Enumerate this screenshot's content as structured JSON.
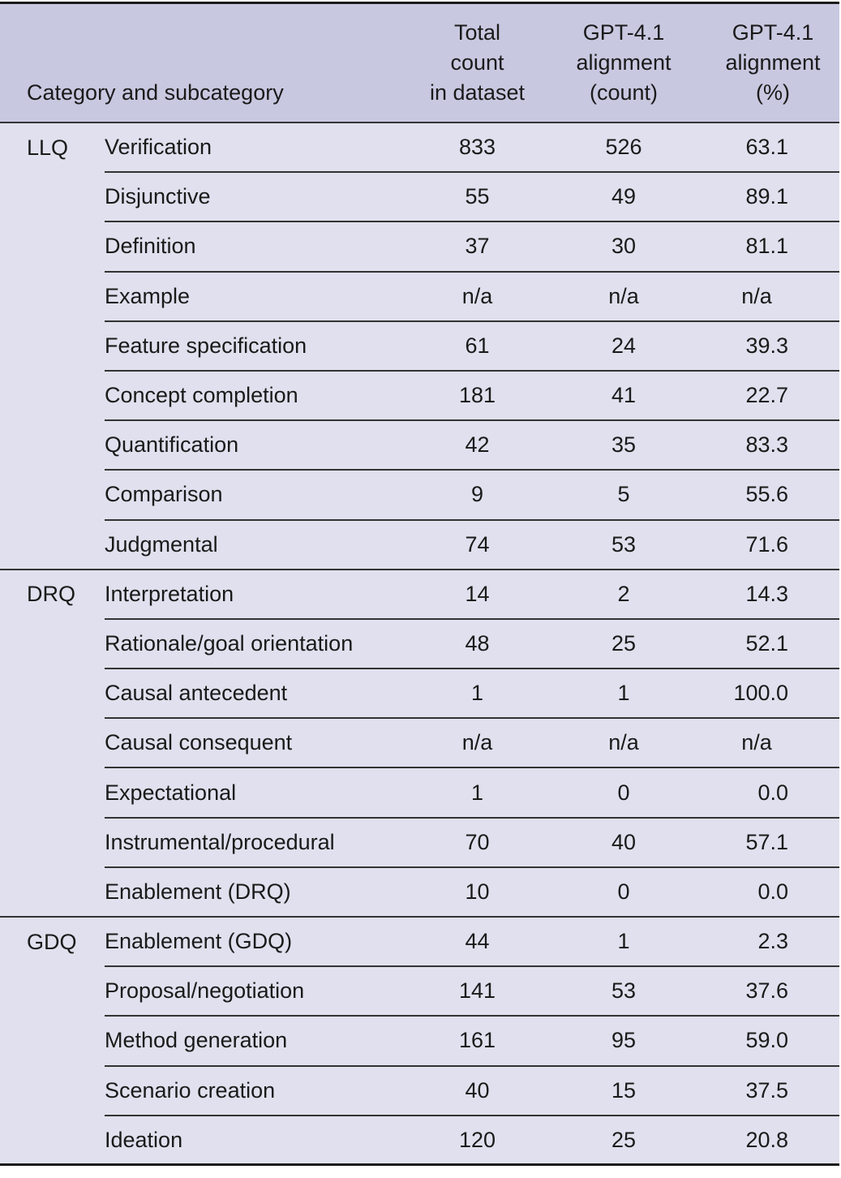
{
  "table": {
    "headers": {
      "category": "Category and subcategory",
      "total": [
        "Total",
        "count",
        "in dataset"
      ],
      "count": [
        "GPT-4.1",
        "alignment",
        "(count)"
      ],
      "pct": [
        "GPT-4.1",
        "alignment",
        "(%)"
      ]
    },
    "groups": [
      {
        "name": "LLQ",
        "rows": [
          {
            "sub": "Verification",
            "total": "833",
            "count": "526",
            "pct": "63.1"
          },
          {
            "sub": "Disjunctive",
            "total": "55",
            "count": "49",
            "pct": "89.1"
          },
          {
            "sub": "Definition",
            "total": "37",
            "count": "30",
            "pct": "81.1"
          },
          {
            "sub": "Example",
            "total": "n/a",
            "count": "n/a",
            "pct": "n/a"
          },
          {
            "sub": "Feature specification",
            "total": "61",
            "count": "24",
            "pct": "39.3"
          },
          {
            "sub": "Concept completion",
            "total": "181",
            "count": "41",
            "pct": "22.7"
          },
          {
            "sub": "Quantification",
            "total": "42",
            "count": "35",
            "pct": "83.3"
          },
          {
            "sub": "Comparison",
            "total": "9",
            "count": "5",
            "pct": "55.6"
          },
          {
            "sub": "Judgmental",
            "total": "74",
            "count": "53",
            "pct": "71.6"
          }
        ]
      },
      {
        "name": "DRQ",
        "rows": [
          {
            "sub": "Interpretation",
            "total": "14",
            "count": "2",
            "pct": "14.3"
          },
          {
            "sub": "Rationale/goal orientation",
            "total": "48",
            "count": "25",
            "pct": "52.1"
          },
          {
            "sub": "Causal antecedent",
            "total": "1",
            "count": "1",
            "pct": "100.0"
          },
          {
            "sub": "Causal consequent",
            "total": "n/a",
            "count": "n/a",
            "pct": "n/a"
          },
          {
            "sub": "Expectational",
            "total": "1",
            "count": "0",
            "pct": "0.0"
          },
          {
            "sub": "Instrumental/procedural",
            "total": "70",
            "count": "40",
            "pct": "57.1"
          },
          {
            "sub": "Enablement (DRQ)",
            "total": "10",
            "count": "0",
            "pct": "0.0"
          }
        ]
      },
      {
        "name": "GDQ",
        "rows": [
          {
            "sub": "Enablement (GDQ)",
            "total": "44",
            "count": "1",
            "pct": "2.3"
          },
          {
            "sub": "Proposal/negotiation",
            "total": "141",
            "count": "53",
            "pct": "37.6"
          },
          {
            "sub": "Method generation",
            "total": "161",
            "count": "95",
            "pct": "59.0"
          },
          {
            "sub": "Scenario creation",
            "total": "40",
            "count": "15",
            "pct": "37.5"
          },
          {
            "sub": "Ideation",
            "total": "120",
            "count": "25",
            "pct": "20.8"
          }
        ]
      }
    ]
  },
  "colors": {
    "header_bg": "#c8c8e1",
    "body_bg": "#e0e0ee",
    "rule": "#333333"
  }
}
